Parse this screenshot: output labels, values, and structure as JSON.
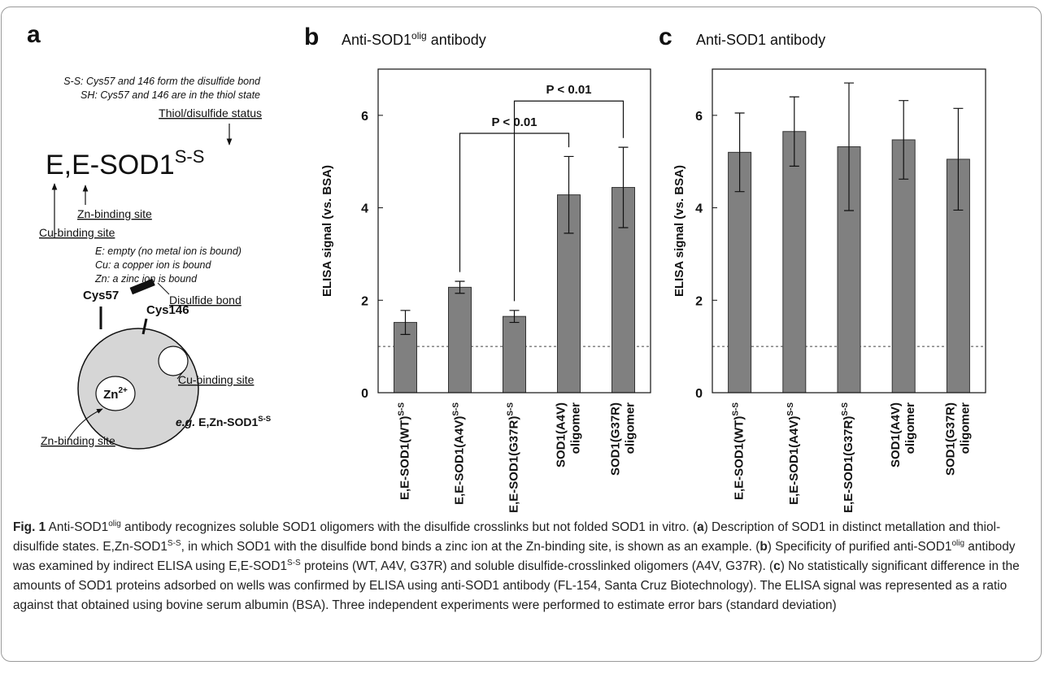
{
  "panel_a": {
    "label": "a",
    "notes": [
      "S-S: Cys57 and 146 form the disulfide bond",
      "SH: Cys57 and 146 are in the thiol state"
    ],
    "status_label": "Thiol/disulfide status",
    "formula": {
      "main": "E,E-SOD1",
      "sup": "S-S"
    },
    "zn_site": "Zn-binding site",
    "cu_site": "Cu-binding site",
    "legend": [
      "E: empty (no metal ion is bound)",
      "Cu: a copper ion is bound",
      "Zn: a zinc ion is bound"
    ],
    "diagram": {
      "cys57": "Cys57",
      "cys146": "Cys146",
      "disulfide": "Disulfide bond",
      "cu_site": "Cu-binding site",
      "zn_site": "Zn-binding site",
      "zn_ion": {
        "main": "Zn",
        "sup": "2+"
      },
      "example": {
        "prefix": "e.g.",
        "main": "E,Zn-SOD1",
        "sup": "S-S"
      }
    }
  },
  "chart_data": [
    {
      "type": "bar",
      "panel": "b",
      "title": "Anti-SOD1",
      "title_superscript": "olig",
      "title_suffix": "antibody",
      "ylabel": "ELISA signal (vs. BSA)",
      "categories": [
        "E,E-SOD1(WT)",
        "E,E-SOD1(A4V)",
        "E,E-SOD1(G37R)",
        "SOD1(A4V)\noligomer",
        "SOD1(G37R)\noligomer"
      ],
      "category_superscripts": [
        "S-S",
        "S-S",
        "S-S"
      ],
      "values": [
        1.52,
        2.28,
        1.65,
        4.28,
        4.44
      ],
      "errors": [
        0.26,
        0.13,
        0.13,
        0.83,
        0.87
      ],
      "color": "#808080",
      "ylim": [
        0,
        7
      ],
      "yticks": [
        0,
        2,
        4,
        6
      ],
      "reference_line": 1,
      "annotations": [
        {
          "text": "P < 0.01",
          "from": 1,
          "to": 3
        },
        {
          "text": "P < 0.01",
          "from": 2,
          "to": 4
        }
      ]
    },
    {
      "type": "bar",
      "panel": "c",
      "title": "Anti-SOD1",
      "title_suffix": "antibody",
      "ylabel": "ELISA signal (vs. BSA)",
      "categories": [
        "E,E-SOD1(WT)",
        "E,E-SOD1(A4V)",
        "E,E-SOD1(G37R)",
        "SOD1(A4V)\noligomer",
        "SOD1(G37R)\noligomer"
      ],
      "category_superscripts": [
        "S-S",
        "S-S",
        "S-S"
      ],
      "values": [
        5.2,
        5.65,
        5.32,
        5.47,
        5.05
      ],
      "errors": [
        0.85,
        0.75,
        1.38,
        0.85,
        1.1
      ],
      "color": "#808080",
      "ylim": [
        0,
        7
      ],
      "yticks": [
        0,
        2,
        4,
        6
      ],
      "reference_line": 1
    }
  ],
  "caption": {
    "label": "Fig. 1",
    "parts": [
      " Anti-SOD1",
      "olig",
      " antibody recognizes soluble SOD1 oligomers with the disulfide crosslinks but not folded SOD1 in vitro. (",
      "a",
      ") Description of SOD1 in distinct metallation and thiol-disulfide states. E,Zn-SOD1",
      "S-S",
      ", in which SOD1 with the disulfide bond binds a zinc ion at the Zn-binding site, is shown as an example. (",
      "b",
      ") Specificity of purified anti-SOD1",
      "olig",
      " antibody was examined by indirect ELISA using E,E-SOD1",
      "S-S",
      " proteins (WT, A4V, G37R) and soluble disulfide-crosslinked oligomers (A4V, G37R). (",
      "c",
      ") No statistically significant difference in the amounts of SOD1 proteins adsorbed on wells was confirmed by ELISA using anti-SOD1 antibody (FL-154, Santa Cruz Biotechnology). The ELISA signal was represented as a ratio against that obtained using bovine serum albumin (BSA). Three independent experiments were performed to estimate error bars (standard deviation)"
    ]
  }
}
